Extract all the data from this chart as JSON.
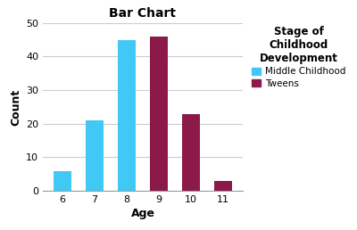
{
  "title": "Bar Chart",
  "xlabel": "Age",
  "ylabel": "Count",
  "ages": [
    6,
    7,
    8,
    9,
    10,
    11
  ],
  "values": [
    6,
    21,
    45,
    46,
    23,
    3
  ],
  "colors": [
    "#42C8F4",
    "#42C8F4",
    "#42C8F4",
    "#8B1A4A",
    "#8B1A4A",
    "#8B1A4A"
  ],
  "legend_title": "Stage of\nChildhood\nDevelopment",
  "legend_labels": [
    "Middle Childhood",
    "Tweens"
  ],
  "legend_colors": [
    "#42C8F4",
    "#8B1A4A"
  ],
  "ylim": [
    0,
    50
  ],
  "yticks": [
    0,
    10,
    20,
    30,
    40,
    50
  ],
  "background_color": "#FFFFFF",
  "bar_width": 0.55,
  "title_fontsize": 10,
  "axis_label_fontsize": 9,
  "tick_fontsize": 8,
  "legend_fontsize": 7.5,
  "legend_title_fontsize": 8.5
}
